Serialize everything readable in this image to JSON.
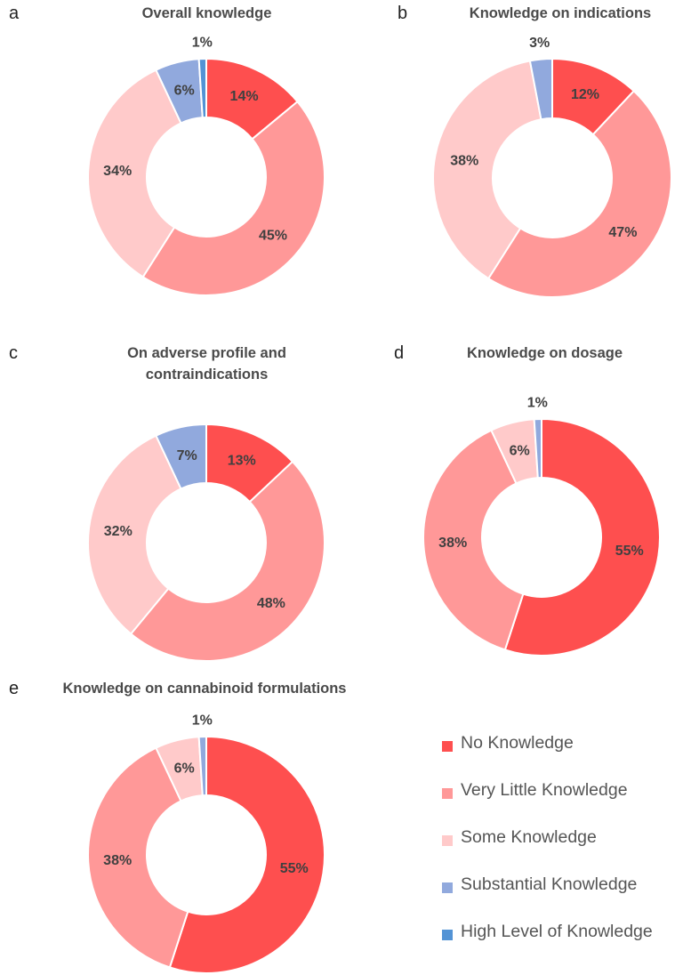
{
  "colors": {
    "no_knowledge": "#fe4f4f",
    "very_little_knowledge": "#ff9898",
    "some_knowledge": "#ffcaca",
    "substantial_knowledge": "#91a9dd",
    "high_level_of_knowledge": "#5393d5"
  },
  "chart_data": [
    {
      "type": "pie",
      "panel": "a",
      "title": "Overall knowledge",
      "categories": [
        "No Knowledge",
        "Very Little Knowledge",
        "Some Knowledge",
        "Substantial Knowledge",
        "High Level of Knowledge"
      ],
      "values": [
        14,
        45,
        34,
        6,
        1
      ],
      "labels": [
        "14%",
        "45%",
        "34%",
        "6%",
        "1%"
      ]
    },
    {
      "type": "pie",
      "panel": "b",
      "title": "Knowledge on indications",
      "categories": [
        "No Knowledge",
        "Very Little Knowledge",
        "Some Knowledge",
        "Substantial Knowledge",
        "High Level of Knowledge"
      ],
      "values": [
        12,
        47,
        38,
        3,
        0
      ],
      "labels": [
        "12%",
        "47%",
        "38%",
        "3%",
        ""
      ]
    },
    {
      "type": "pie",
      "panel": "c",
      "title": "On adverse profile and contraindications",
      "categories": [
        "No Knowledge",
        "Very Little Knowledge",
        "Some Knowledge",
        "Substantial Knowledge",
        "High Level of Knowledge"
      ],
      "values": [
        13,
        48,
        32,
        7,
        0
      ],
      "labels": [
        "13%",
        "48%",
        "32%",
        "7%",
        ""
      ]
    },
    {
      "type": "pie",
      "panel": "d",
      "title": "Knowledge on dosage",
      "categories": [
        "No Knowledge",
        "Very Little Knowledge",
        "Some Knowledge",
        "Substantial Knowledge",
        "High Level of Knowledge"
      ],
      "values": [
        55,
        38,
        6,
        1,
        0
      ],
      "labels": [
        "55%",
        "38%",
        "6%",
        "1%",
        ""
      ]
    },
    {
      "type": "pie",
      "panel": "e",
      "title": "Knowledge on cannabinoid formulations",
      "categories": [
        "No Knowledge",
        "Very Little Knowledge",
        "Some Knowledge",
        "Substantial Knowledge",
        "High Level of Knowledge"
      ],
      "values": [
        55,
        38,
        6,
        1,
        0
      ],
      "labels": [
        "55%",
        "38%",
        "6%",
        "1%",
        ""
      ]
    }
  ],
  "legend": {
    "items": [
      {
        "label": "No Knowledge",
        "color": "#fe4f4f"
      },
      {
        "label": "Very Little Knowledge",
        "color": "#ff9898"
      },
      {
        "label": "Some Knowledge",
        "color": "#ffcaca"
      },
      {
        "label": "Substantial Knowledge",
        "color": "#91a9dd"
      },
      {
        "label": "High Level of Knowledge",
        "color": "#5393d5"
      }
    ]
  },
  "titles": {
    "a_letter": "a",
    "a": "Overall knowledge",
    "b_letter": "b",
    "b": "Knowledge on indications",
    "c_letter": "c",
    "c_line1": "On adverse profile and",
    "c_line2": "contraindications",
    "d_letter": "d",
    "d": "Knowledge on dosage",
    "e_letter": "e",
    "e": "Knowledge on cannabinoid formulations"
  }
}
